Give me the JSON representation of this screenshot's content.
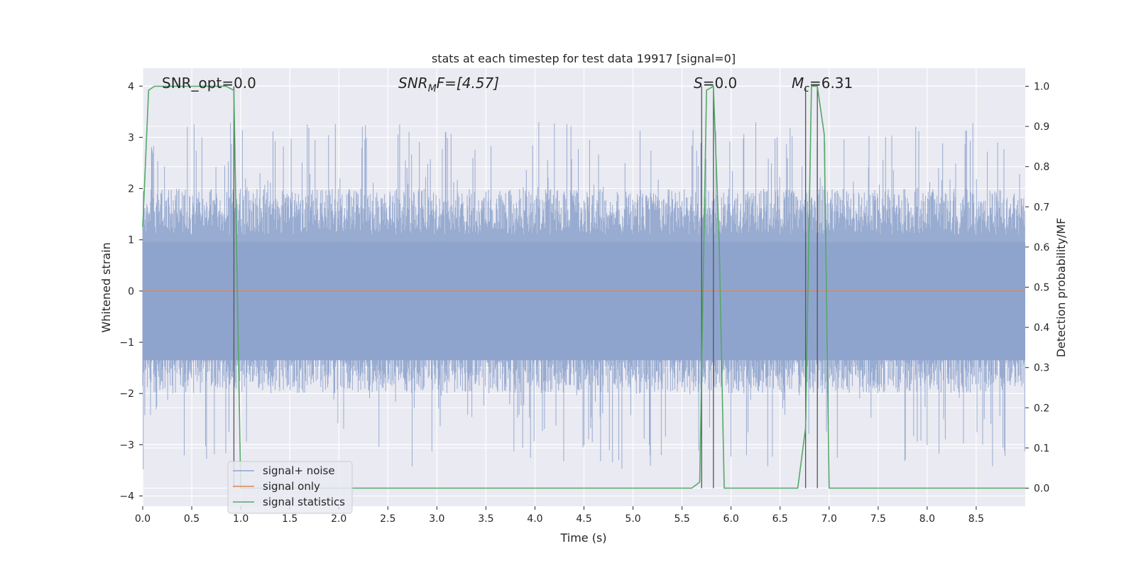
{
  "chart_data": {
    "type": "line",
    "title": "stats at each timestep for test data 19917 [signal=0]",
    "xlabel": "Time (s)",
    "ylabel_left": "Whitened strain",
    "ylabel_right": "Detection probability/MF",
    "xlim": [
      0,
      9.0
    ],
    "ylim_left": [
      -4.2,
      4.35
    ],
    "ylim_right": [
      -0.045,
      1.045
    ],
    "x_ticks": [
      "0.0",
      "0.5",
      "1.0",
      "1.5",
      "2.0",
      "2.5",
      "3.0",
      "3.5",
      "4.0",
      "4.5",
      "5.0",
      "5.5",
      "6.0",
      "6.5",
      "7.0",
      "7.5",
      "8.0",
      "8.5"
    ],
    "y_left_ticks": [
      "4",
      "3",
      "2",
      "1",
      "0",
      "−1",
      "−2",
      "−3",
      "−4"
    ],
    "y_right_ticks": [
      "1.0",
      "0.9",
      "0.8",
      "0.7",
      "0.6",
      "0.5",
      "0.4",
      "0.3",
      "0.2",
      "0.1",
      "0.0"
    ],
    "grid": true,
    "legend_position": "lower-left",
    "annotations": {
      "snr_opt": "SNR_opt=0.0",
      "snr_mf_main": "SNR",
      "snr_mf_sub": "M",
      "snr_mf_rest": "F=[4.57]",
      "s_label": "S",
      "s_rest": "=0.0",
      "mc_main": "M",
      "mc_sub": "c",
      "mc_rest": "=6.31"
    },
    "series": [
      {
        "name": "signal+ noise",
        "color": "#8fa4cc",
        "description_amplitude": {
          "typical_min": -2.0,
          "typical_max": 2.0,
          "peak_min": -3.5,
          "peak_max": 3.3
        }
      },
      {
        "name": "signal only",
        "color": "#dd8452",
        "x": [
          0,
          9.0
        ],
        "y": [
          0,
          0
        ]
      },
      {
        "name": "signal statistics",
        "color": "#55a868",
        "x": [
          0.0,
          0.06,
          0.12,
          0.2,
          0.3,
          0.5,
          0.7,
          0.85,
          0.93,
          1.0,
          1.1,
          1.5,
          1.9,
          2.0,
          2.5,
          3.0,
          4.0,
          5.0,
          5.6,
          5.68,
          5.75,
          5.82,
          5.88,
          5.93,
          6.0,
          6.5,
          6.68,
          6.76,
          6.82,
          6.88,
          6.95,
          7.0,
          7.05,
          7.5,
          8.0,
          9.0
        ],
        "y": [
          0.65,
          0.99,
          1.0,
          1.0,
          1.0,
          1.0,
          1.0,
          1.0,
          0.99,
          0.0,
          0.0,
          0.0,
          0.0,
          0.0,
          0.0,
          0.0,
          0.0,
          0.0,
          0.0,
          0.015,
          0.99,
          1.0,
          0.6,
          0.0,
          0.0,
          0.0,
          0.0,
          0.15,
          1.0,
          1.0,
          0.88,
          0.0,
          0.0,
          0.0,
          0.0,
          0.0
        ]
      }
    ],
    "vertical_lines_x": [
      0.93,
      5.7,
      5.82,
      6.76,
      6.88
    ]
  }
}
